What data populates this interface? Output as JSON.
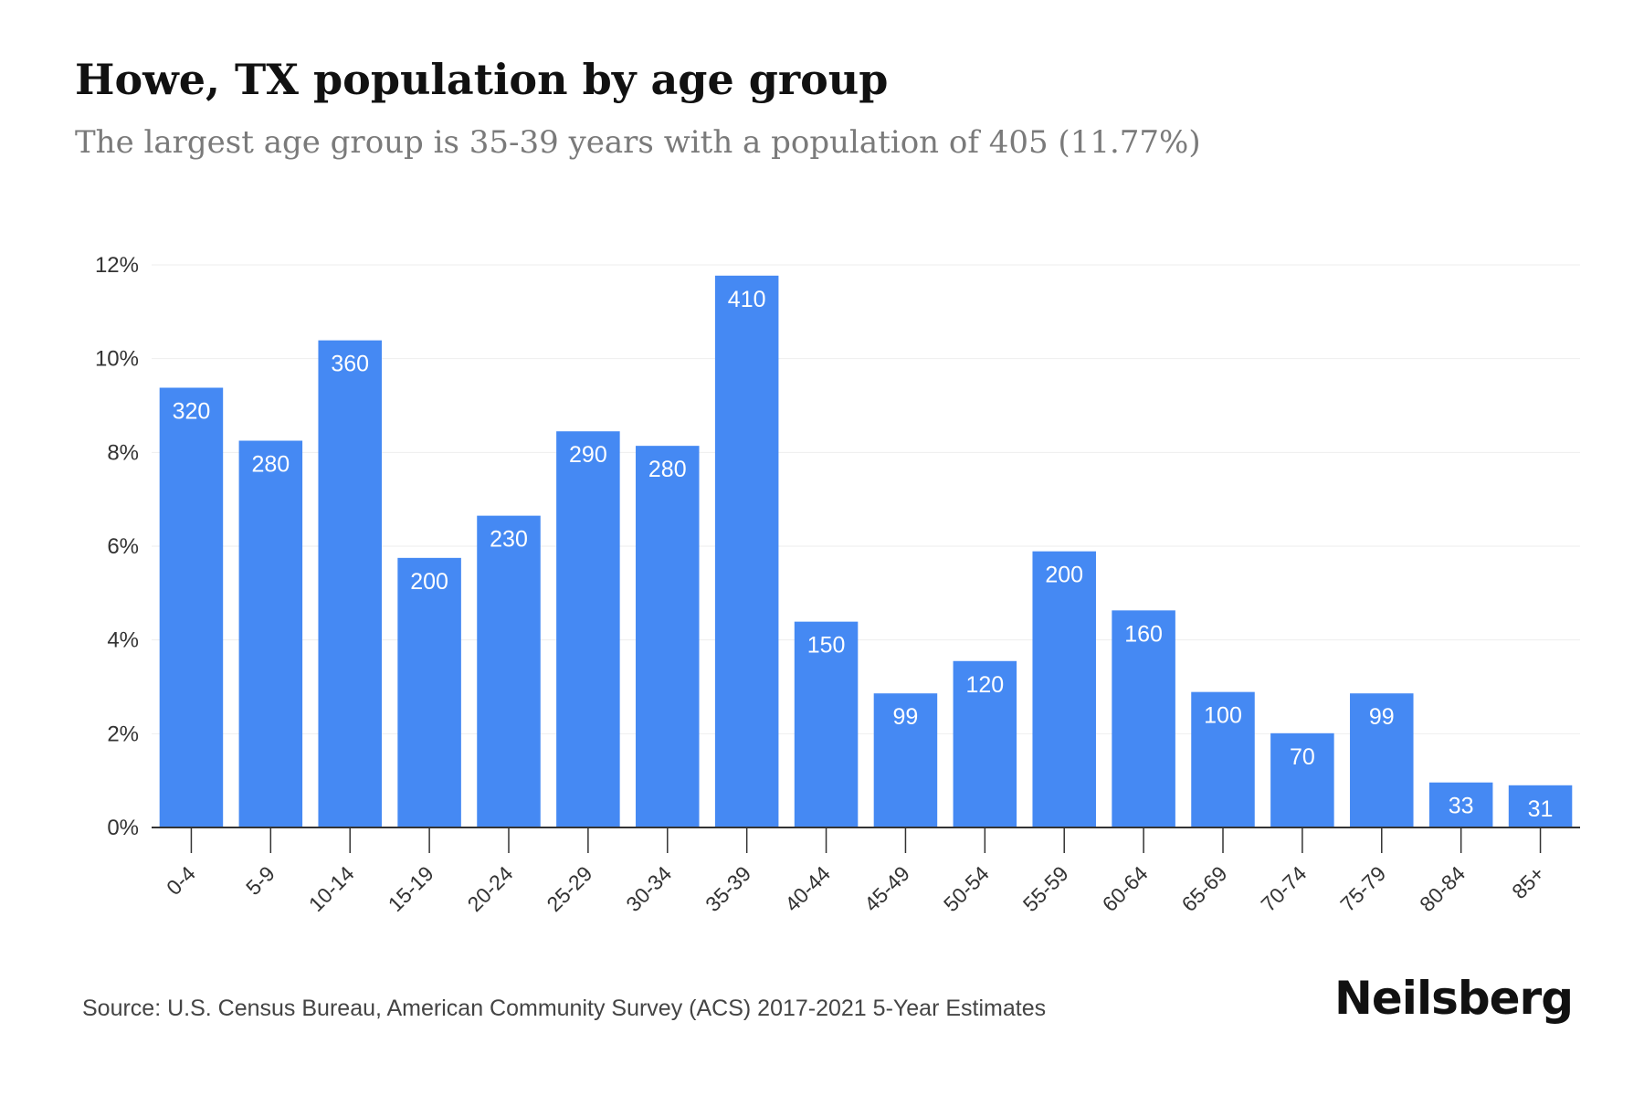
{
  "header": {
    "title": "Howe, TX population by age group",
    "subtitle": "The largest age group is 35-39 years with a population of 405 (11.77%)"
  },
  "footer": {
    "source": "Source: U.S. Census Bureau, American Community Survey (ACS) 2017-2021 5-Year Estimates",
    "brand": "Neilsberg"
  },
  "colors": {
    "bar": "#4589f3",
    "grid": "#eeeeee",
    "axis": "#333333"
  },
  "chart_data": {
    "type": "bar",
    "categories": [
      "0-4",
      "5-9",
      "10-14",
      "15-19",
      "20-24",
      "25-29",
      "30-34",
      "35-39",
      "40-44",
      "45-49",
      "50-54",
      "55-59",
      "60-64",
      "65-69",
      "70-74",
      "75-79",
      "80-84",
      "85+"
    ],
    "values": [
      9.38,
      8.25,
      10.39,
      5.75,
      6.65,
      8.45,
      8.14,
      11.77,
      4.39,
      2.86,
      3.55,
      5.89,
      4.63,
      2.89,
      2.01,
      2.86,
      0.96,
      0.9
    ],
    "labels": [
      "320",
      "280",
      "360",
      "200",
      "230",
      "290",
      "280",
      "410",
      "150",
      "99",
      "120",
      "200",
      "160",
      "100",
      "70",
      "99",
      "33",
      "31"
    ],
    "yticks": [
      "0%",
      "2%",
      "4%",
      "6%",
      "8%",
      "10%",
      "12%"
    ],
    "ylim": [
      0,
      12
    ],
    "grid": true
  }
}
